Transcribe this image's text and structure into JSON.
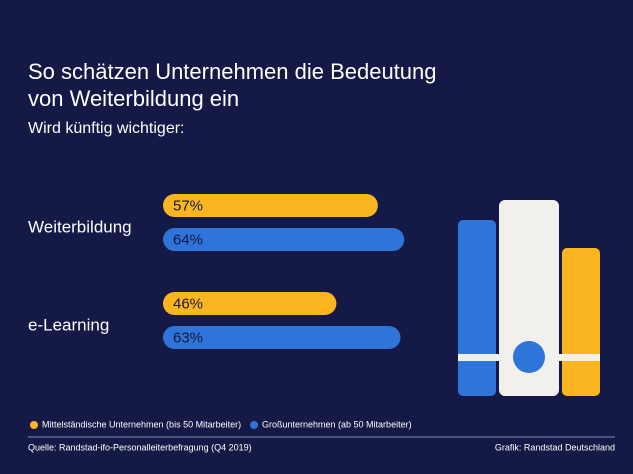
{
  "chart_data": {
    "type": "bar",
    "orientation": "horizontal",
    "title": "So schätzen Unternehmen die Bedeutung von Weiterbildung ein",
    "subtitle": "Wird künftig wichtiger:",
    "categories": [
      "Weiterbildung",
      "e-Learning"
    ],
    "series": [
      {
        "name": "Mittelständische Unternehmen (bis 50 Mitarbeiter)",
        "color": "#fbb521",
        "values": [
          57,
          46
        ],
        "value_labels": [
          "57%",
          "46%"
        ]
      },
      {
        "name": "Großunternehmen (ab 50 Mitarbeiter)",
        "color": "#2f74d9",
        "values": [
          64,
          63
        ],
        "value_labels": [
          "64%",
          "63%"
        ]
      }
    ],
    "source": "Quelle: Randstad-ifo-Personalleiterbefragung (Q4 2019)",
    "credit": "Grafik: Randstad Deutschland"
  }
}
